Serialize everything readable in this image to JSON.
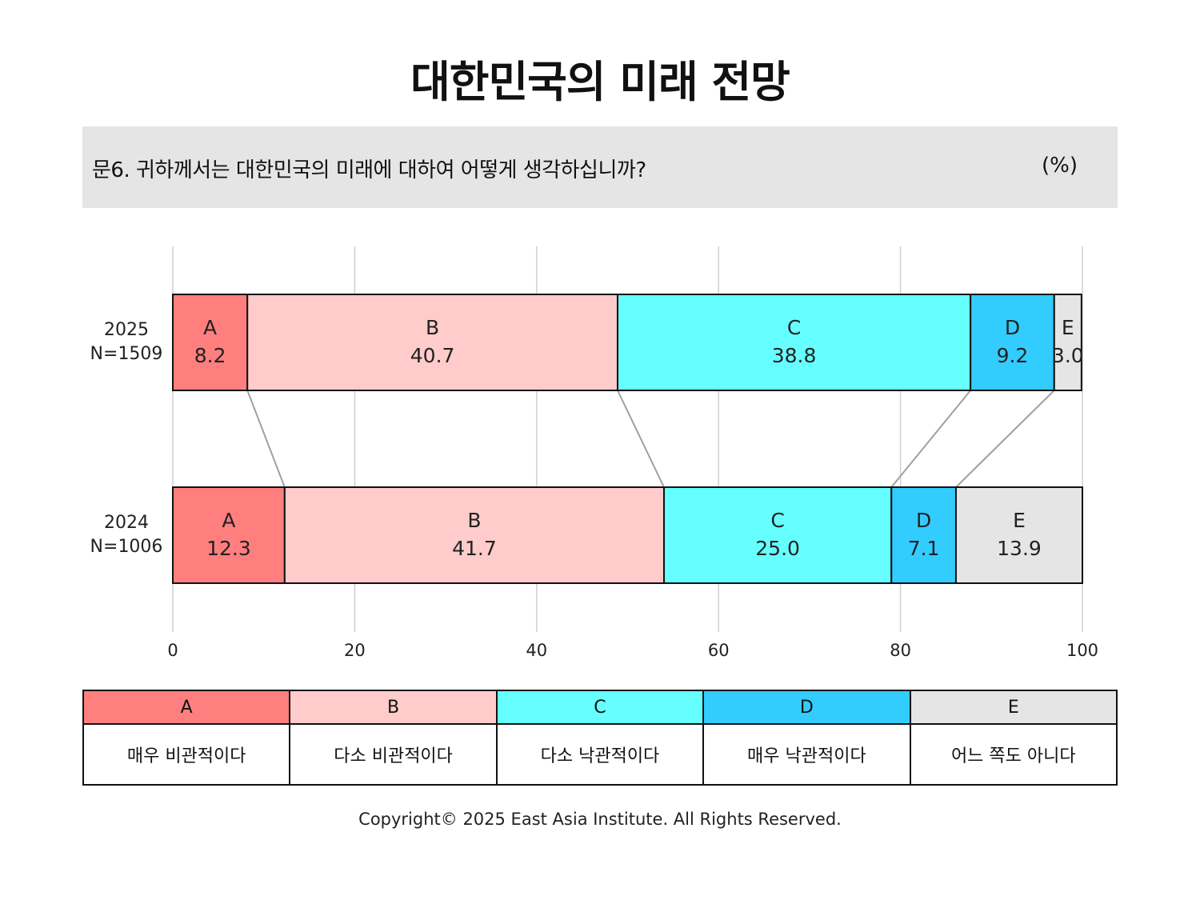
{
  "title": "대한민국의 미래 전망",
  "question": "문6. 귀하께서는 대한민국의 미래에 대하여 어떻게 생각하십니까?",
  "unit": "(%)",
  "chart_data": {
    "type": "bar",
    "stacked": true,
    "orientation": "horizontal",
    "categories": [
      {
        "year": "2025",
        "n": "N=1509"
      },
      {
        "year": "2024",
        "n": "N=1006"
      }
    ],
    "series": [
      {
        "name": "A",
        "color": "#ff7f7f",
        "values": [
          8.2,
          12.3
        ]
      },
      {
        "name": "B",
        "color": "#ffcbcb",
        "values": [
          40.7,
          41.7
        ]
      },
      {
        "name": "C",
        "color": "#66ffff",
        "values": [
          38.8,
          25.0
        ]
      },
      {
        "name": "D",
        "color": "#33ccff",
        "values": [
          9.2,
          7.1
        ]
      },
      {
        "name": "E",
        "color": "#e6e5e6",
        "values": [
          3.0,
          13.9
        ]
      }
    ],
    "xlim": [
      0,
      100
    ],
    "xticks": [
      "0",
      "20",
      "40",
      "60",
      "80",
      "100"
    ],
    "grid": true
  },
  "legend": [
    {
      "key": "A",
      "label": "매우 비관적이다",
      "color": "#ff7f7f"
    },
    {
      "key": "B",
      "label": "다소 비관적이다",
      "color": "#ffcbcb"
    },
    {
      "key": "C",
      "label": "다소 낙관적이다",
      "color": "#66ffff"
    },
    {
      "key": "D",
      "label": "매우 낙관적이다",
      "color": "#33ccff"
    },
    {
      "key": "E",
      "label": "어느 쪽도 아니다",
      "color": "#e6e5e6"
    }
  ],
  "copyright": "Copyright© 2025 East Asia Institute. All Rights Reserved."
}
